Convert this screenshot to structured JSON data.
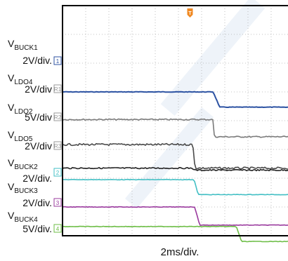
{
  "chart_data": {
    "type": "line",
    "x_label": "2ms/div.",
    "trigger_marker": "T",
    "colors": {
      "background": "#ffffff",
      "frame": "#000000",
      "grid": "#b0b0b0"
    },
    "series": [
      {
        "name": "BUCK1",
        "scale": "2V/div.",
        "channel": "1",
        "color": "#2c52a2",
        "marker_color": "#2c52a2",
        "high_div": 5.0,
        "low_div": 4.47,
        "fall_start_div": 6.5,
        "fall_end_div": 6.78
      },
      {
        "name": "LDO4",
        "scale": "2V/div",
        "channel": "R1",
        "color": "#7a7a7a",
        "marker_color": "#9a9a9a",
        "high_div": 4.04,
        "low_div": 3.44,
        "fall_start_div": 6.5,
        "fall_end_div": 6.55
      },
      {
        "name": "LDO2",
        "scale": "5V/div",
        "channel": "R2",
        "color": "#4a4a4a",
        "marker_color": "#9a9a9a",
        "high_div": 3.17,
        "low_div": 2.35,
        "fall_start_div": 5.62,
        "fall_end_div": 5.72
      },
      {
        "name": "LDO5",
        "scale": "2V/div",
        "channel": "R3",
        "color": "#222222",
        "marker_color": "#9a9a9a",
        "high_div": 2.35,
        "low_div": 2.28,
        "fall_start_div": 5.6,
        "fall_end_div": 5.7
      },
      {
        "name": "BUCK2",
        "scale": "2V/div.",
        "channel": "2",
        "color": "#42bfc4",
        "marker_color": "#42bfc4",
        "high_div": 1.95,
        "low_div": 1.43,
        "fall_start_div": 5.68,
        "fall_end_div": 5.85
      },
      {
        "name": "BUCK3",
        "scale": "2V/div.",
        "channel": "3",
        "color": "#9a3a9e",
        "marker_color": "#9a3a9e",
        "high_div": 1.0,
        "low_div": 0.37,
        "fall_start_div": 5.7,
        "fall_end_div": 5.92
      },
      {
        "name": "BUCK4",
        "scale": "5V/div.",
        "channel": "4",
        "color": "#6cbd45",
        "marker_color": "#6cbd45",
        "high_div": 0.32,
        "low_div": -0.2,
        "fall_start_div": 7.5,
        "fall_end_div": 7.72
      }
    ]
  },
  "labels": [
    {
      "prefix": "V",
      "name": "BUCK1",
      "scale": "2V/div."
    },
    {
      "prefix": "V",
      "name": "LDO4",
      "scale": "2V/div"
    },
    {
      "prefix": "V",
      "name": "LDO2",
      "scale": "5V/div"
    },
    {
      "prefix": "V",
      "name": "LDO5",
      "scale": "2V/div"
    },
    {
      "prefix": "V",
      "name": "BUCK2",
      "scale": "2V/div."
    },
    {
      "prefix": "V",
      "name": "BUCK3",
      "scale": "2V/div."
    },
    {
      "prefix": "V",
      "name": "BUCK4",
      "scale": "5V/div."
    }
  ],
  "channel_markers": [
    "1",
    "R1",
    "R2",
    "R3",
    "2",
    "3",
    "4"
  ]
}
